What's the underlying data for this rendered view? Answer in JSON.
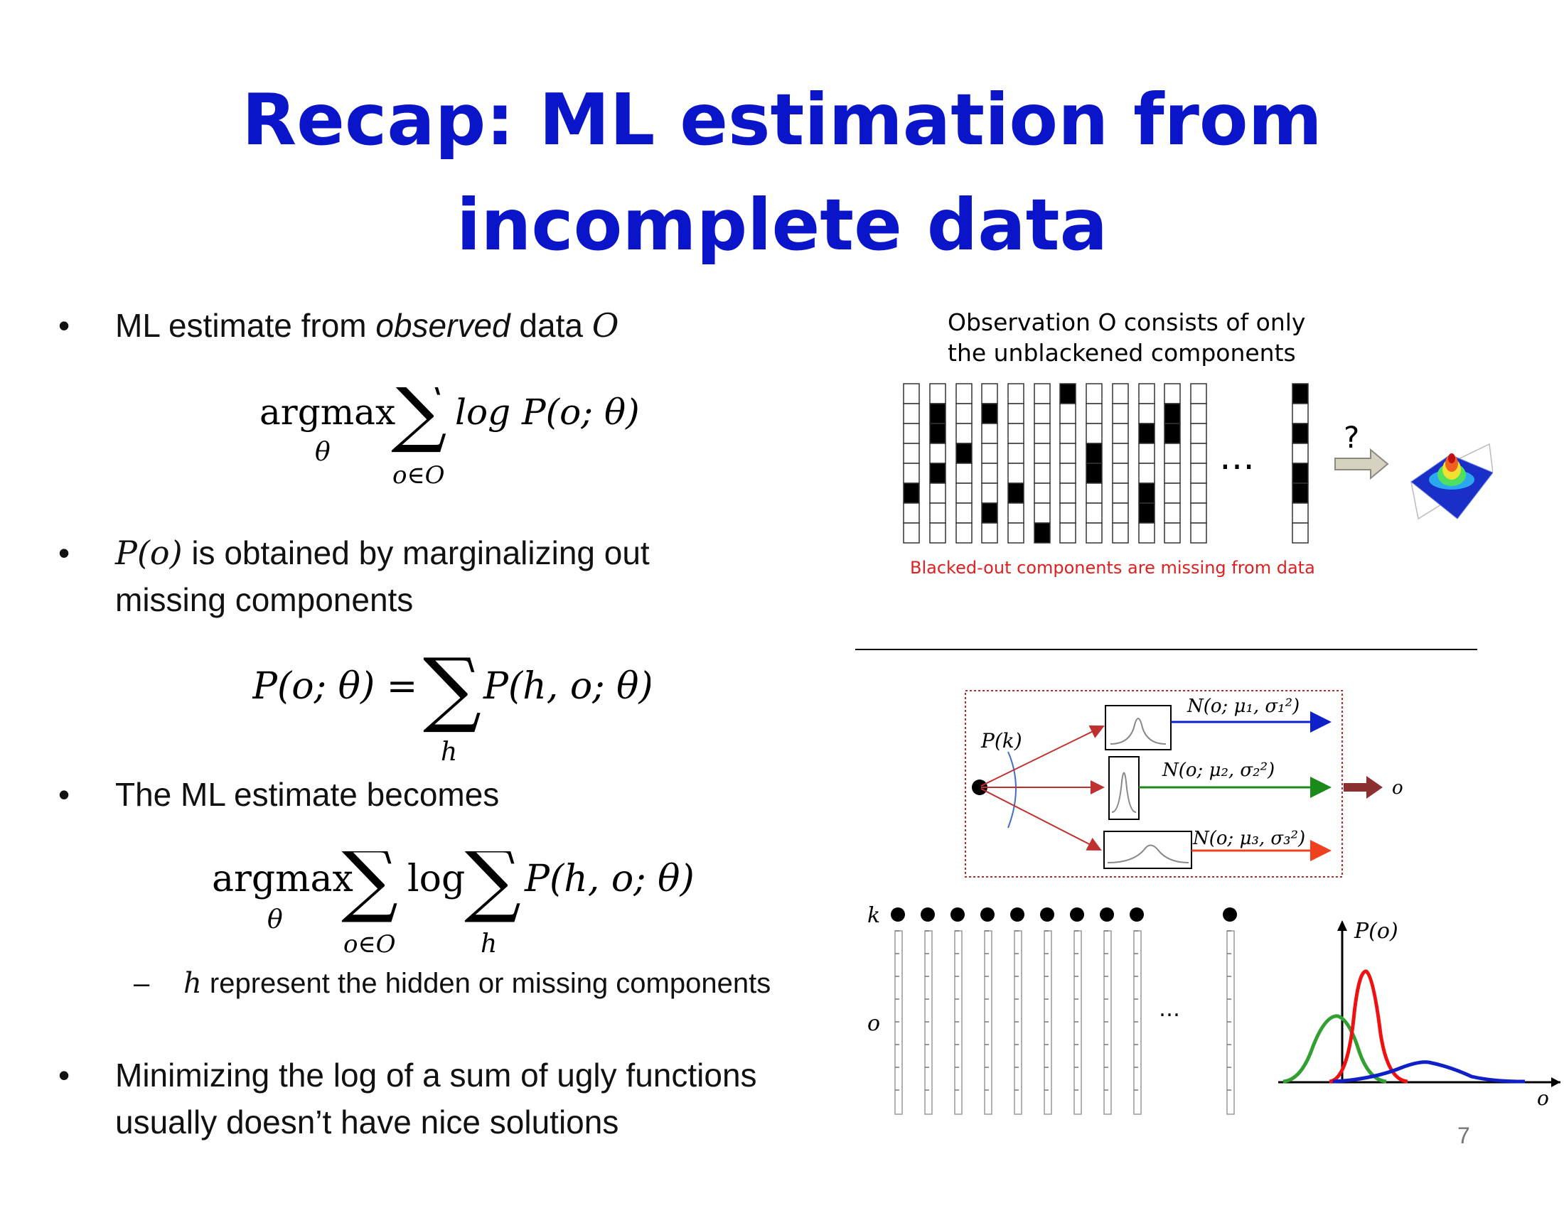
{
  "title": {
    "line1": "Recap: ML estimation from",
    "line2": "incomplete data"
  },
  "bullets": {
    "b1": {
      "pre": "ML estimate from ",
      "em": "observed",
      "post": " data ",
      "var": "O"
    },
    "b2": {
      "var": "P(o)",
      "line1": " is obtained by marginalizing out",
      "line2": "missing components"
    },
    "b3": {
      "text": "The ML estimate becomes"
    },
    "sub1": {
      "var": "h",
      "text": " represent the hidden or missing components"
    },
    "b4": {
      "line1": "Minimizing the log of a sum of ugly functions",
      "line2": "usually doesn’t have nice solutions"
    }
  },
  "equations": {
    "eq1": {
      "argmax": "argmax",
      "sub": "θ",
      "sum": "∑",
      "sumsub": "o∈O",
      "body": "log P(o; θ)"
    },
    "eq2": {
      "lhs": "P(o; θ) =",
      "sum": "∑",
      "sumsub": "h",
      "body": "P(h, o; θ)"
    },
    "eq3": {
      "argmax": "argmax",
      "sub": "θ",
      "sum1": "∑",
      "sum1sub": "o∈O",
      "log": "log",
      "sum2": "∑",
      "sum2sub": "h",
      "body": "P(h, o; θ)"
    }
  },
  "figure_top": {
    "caption_line1": "Observation O consists of only",
    "caption_line2": "the unblackened components",
    "ellipsis": "…",
    "question": "?",
    "missing_caption": "Blacked-out components are missing from data",
    "missing_color": "#e02020"
  },
  "figure_mixture": {
    "pk_label": "P(k)",
    "n1": "N(o; μ₁, σ₁²)",
    "n2": "N(o; μ₂, σ₂²)",
    "n3": "N(o; μ₃, σ₃²)",
    "output": "o",
    "colors": {
      "blue": "#1020c8",
      "green": "#1a8a1a",
      "red": "#f04020",
      "arrow": "#8a3030"
    }
  },
  "figure_bottom": {
    "k_label": "k",
    "o_label": "o",
    "ellipsis": "…",
    "py_label": "P(o)",
    "px_label": "o"
  },
  "page_number": "7",
  "colors": {
    "title": "#0a14c8"
  }
}
